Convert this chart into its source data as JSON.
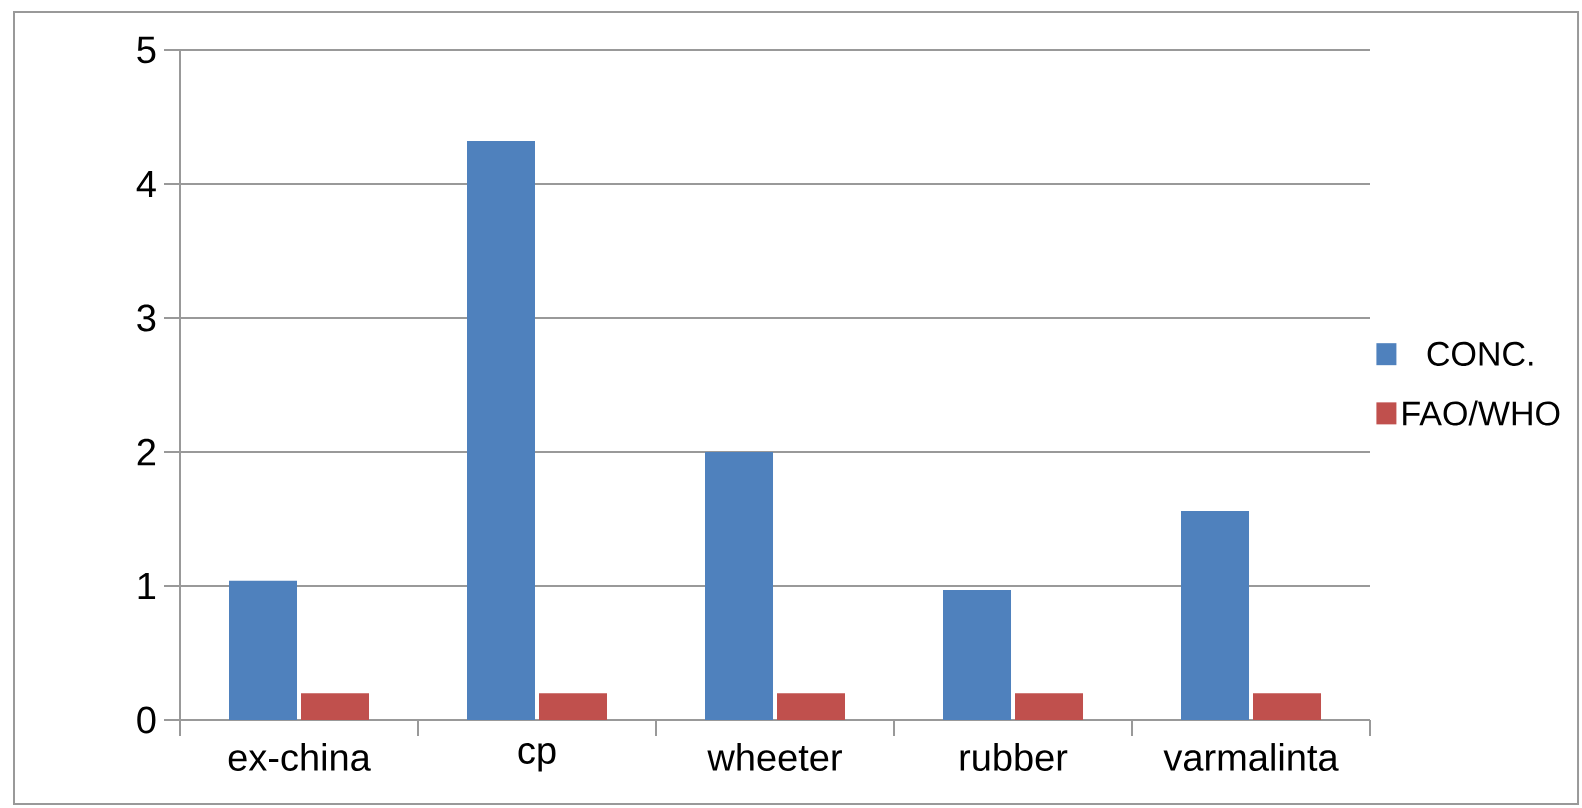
{
  "chart_data": {
    "type": "bar",
    "categories": [
      "ex-china",
      "cp",
      "wheeter",
      "rubber",
      "varmalinta"
    ],
    "series": [
      {
        "name": "CONC.",
        "color": "#4f81bd",
        "values": [
          1.04,
          4.32,
          2.0,
          0.97,
          1.56
        ]
      },
      {
        "name": "FAO/WHO",
        "color": "#c0504d",
        "values": [
          0.2,
          0.2,
          0.2,
          0.2,
          0.2
        ]
      }
    ],
    "ylim": [
      0,
      5
    ],
    "yticks": [
      0,
      1,
      2,
      3,
      4,
      5
    ],
    "grid": "y",
    "legend": "right"
  }
}
